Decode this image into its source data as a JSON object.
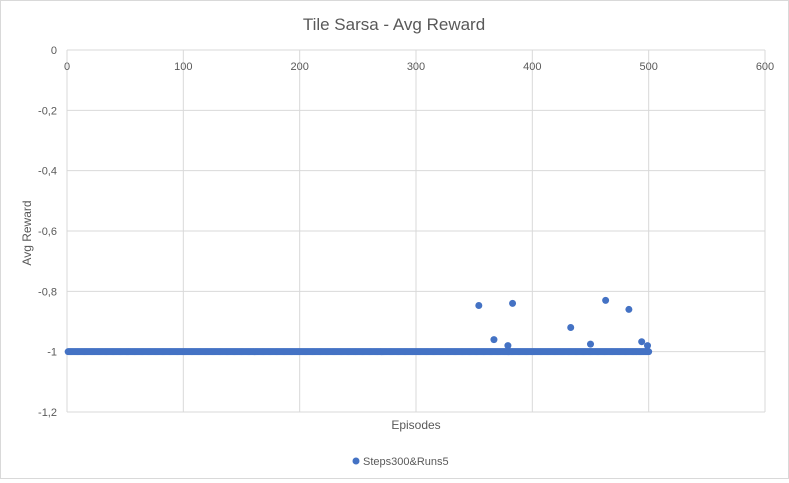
{
  "chart_data": {
    "type": "scatter",
    "title": "Tile Sarsa - Avg Reward",
    "xlabel": "Episodes",
    "ylabel": "Avg Reward",
    "xlim": [
      0,
      600
    ],
    "ylim": [
      -1.2,
      0
    ],
    "x_ticks": [
      0,
      100,
      200,
      300,
      400,
      500,
      600
    ],
    "x_tick_labels": [
      "0",
      "100",
      "200",
      "300",
      "400",
      "500",
      "600"
    ],
    "y_ticks": [
      0,
      -0.2,
      -0.4,
      -0.6,
      -0.8,
      -1,
      -1.2
    ],
    "y_tick_labels": [
      "0",
      "-0,2",
      "-0,4",
      "-0,6",
      "-0,8",
      "-1",
      "-1,2"
    ],
    "grid": true,
    "legend_position": "bottom",
    "series": [
      {
        "name": "Steps300&Runs5",
        "color": "#4472c4",
        "baseline": {
          "x_start": 1,
          "x_end": 500,
          "y": -1
        },
        "points": [
          {
            "x": 354,
            "y": -0.847
          },
          {
            "x": 367,
            "y": -0.96
          },
          {
            "x": 379,
            "y": -0.98
          },
          {
            "x": 383,
            "y": -0.84
          },
          {
            "x": 433,
            "y": -0.92
          },
          {
            "x": 450,
            "y": -0.975
          },
          {
            "x": 463,
            "y": -0.83
          },
          {
            "x": 483,
            "y": -0.86
          },
          {
            "x": 494,
            "y": -0.967
          },
          {
            "x": 499,
            "y": -0.98
          }
        ]
      }
    ]
  }
}
